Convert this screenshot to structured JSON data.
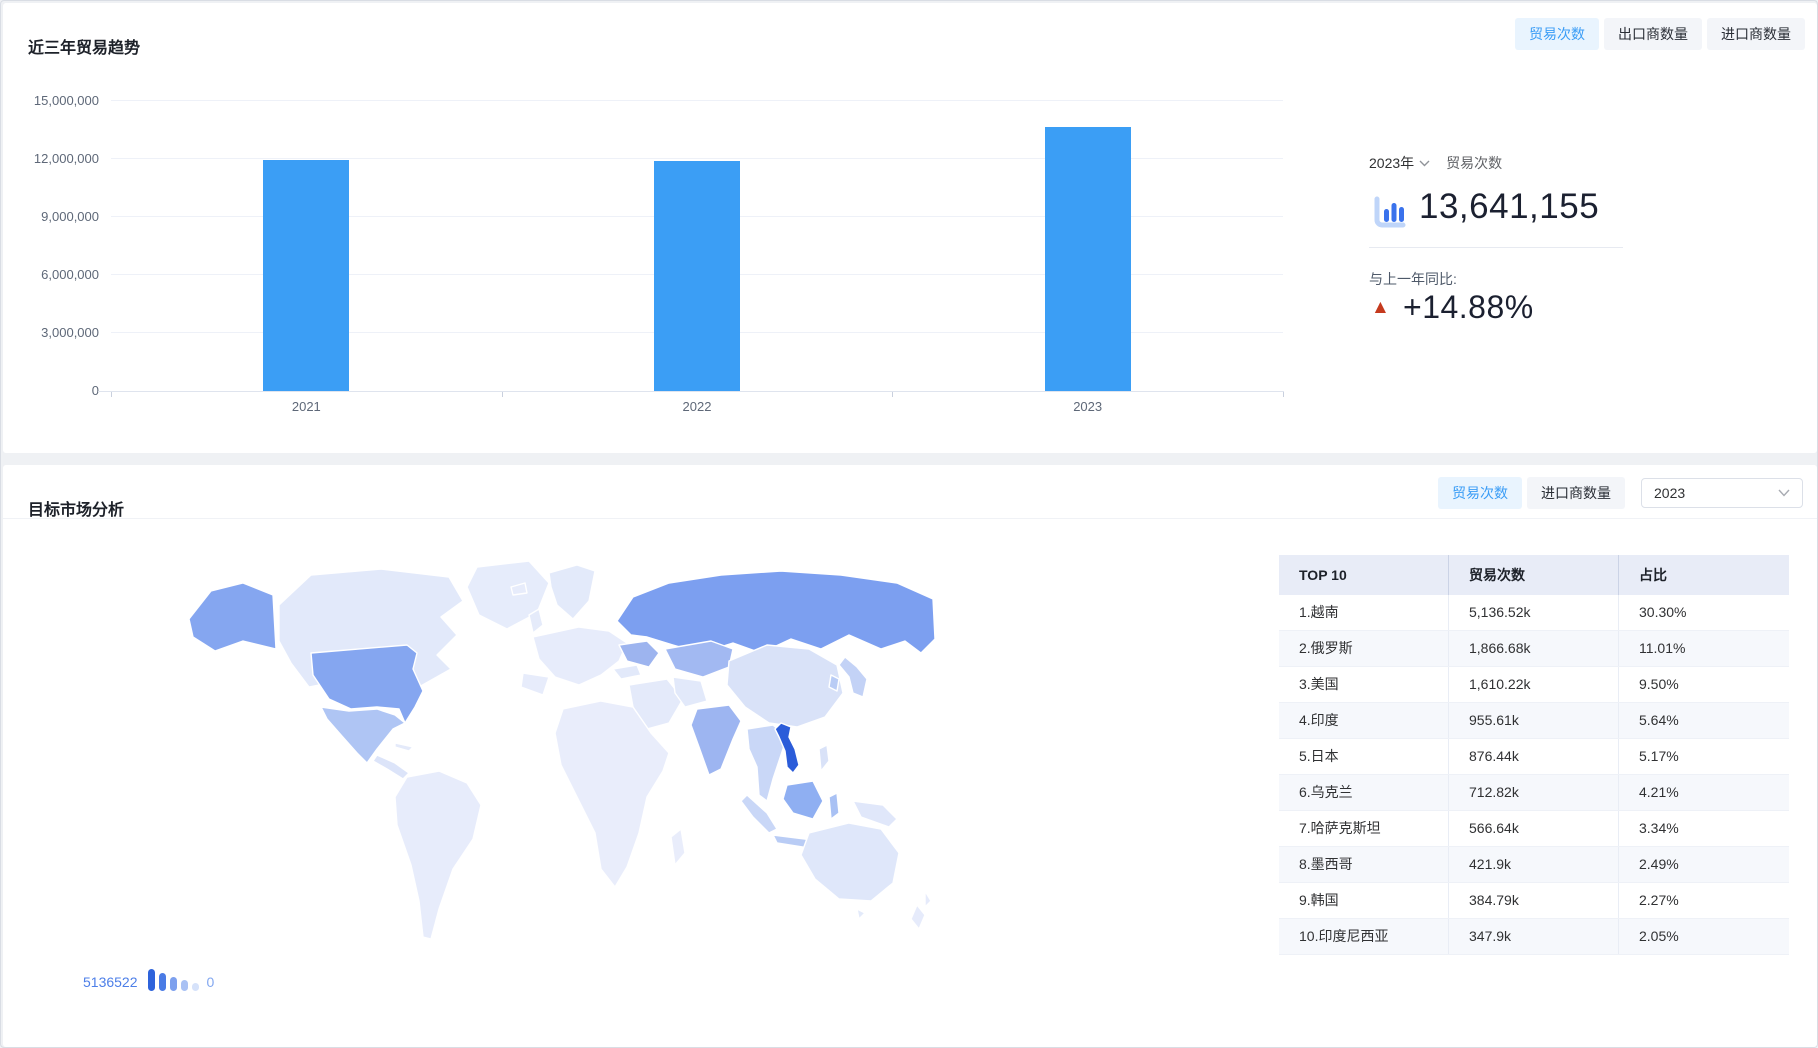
{
  "section1": {
    "title": "近三年贸易趋势",
    "tabs": [
      {
        "name": "tab-trade-count",
        "label": "贸易次数",
        "active": true
      },
      {
        "name": "tab-exporter-count",
        "label": "出口商数量",
        "active": false
      },
      {
        "name": "tab-importer-count",
        "label": "进口商数量",
        "active": false
      }
    ],
    "stat": {
      "year_select": "2023年",
      "metric_label": "贸易次数",
      "value": "13,641,155",
      "yoy_label": "与上一年同比:",
      "yoy_value": "+14.88%",
      "yoy_direction": "up"
    }
  },
  "section2": {
    "title": "目标市场分析",
    "tabs": [
      {
        "name": "tab-trade-count-2",
        "label": "贸易次数",
        "active": true
      },
      {
        "name": "tab-importer-count-2",
        "label": "进口商数量",
        "active": false
      }
    ],
    "year_select": "2023",
    "map_legend": {
      "max": "5136522",
      "min": "0"
    },
    "table": {
      "headers": [
        "TOP 10",
        "贸易次数",
        "占比"
      ]
    }
  },
  "chart_data": [
    {
      "type": "bar",
      "title": "近三年贸易趋势",
      "metric": "贸易次数",
      "categories": [
        "2021",
        "2022",
        "2023"
      ],
      "values": [
        11970000,
        11874000,
        13641155
      ],
      "ylim": [
        0,
        15000000
      ],
      "ytick_labels": [
        "0",
        "3,000,000",
        "6,000,000",
        "9,000,000",
        "12,000,000",
        "15,000,000"
      ],
      "grid": true,
      "legend_position": "none",
      "bar_color": "#3B9EF5"
    },
    {
      "type": "heatmap",
      "subtype": "world_choropleth",
      "title": "目标市场分析",
      "metric": "贸易次数",
      "year": "2023",
      "value_range": [
        0,
        5136522
      ],
      "top10": [
        {
          "rank": 1,
          "name": "越南",
          "value": "5,136.52k",
          "share": "30.30%"
        },
        {
          "rank": 2,
          "name": "俄罗斯",
          "value": "1,866.68k",
          "share": "11.01%"
        },
        {
          "rank": 3,
          "name": "美国",
          "value": "1,610.22k",
          "share": "9.50%"
        },
        {
          "rank": 4,
          "name": "印度",
          "value": "955.61k",
          "share": "5.64%"
        },
        {
          "rank": 5,
          "name": "日本",
          "value": "876.44k",
          "share": "5.17%"
        },
        {
          "rank": 6,
          "name": "乌克兰",
          "value": "712.82k",
          "share": "4.21%"
        },
        {
          "rank": 7,
          "name": "哈萨克斯坦",
          "value": "566.64k",
          "share": "3.34%"
        },
        {
          "rank": 8,
          "name": "墨西哥",
          "value": "421.9k",
          "share": "2.49%"
        },
        {
          "rank": 9,
          "name": "韩国",
          "value": "384.79k",
          "share": "2.27%"
        },
        {
          "rank": 10,
          "name": "印度尼西亚",
          "value": "347.9k",
          "share": "2.05%"
        }
      ]
    }
  ],
  "colors": {
    "accent_blue": "#3B9EF5",
    "tab_active_bg": "#E9F4FE",
    "tab_active_text": "#3B9DF6",
    "bar": "#3B9EF5",
    "up_indicator": "#C53A1E",
    "table_header_bg": "#E8ECF7",
    "row_alt_bg": "#F6F8FC",
    "legend_text_max": "#4D7FE8",
    "legend_text_min": "#82A7F0",
    "legend_bars": [
      "#2E63DB",
      "#4A7BE5",
      "#7DA0EE",
      "#A9C1F4",
      "#D6E2FA"
    ]
  },
  "map": {
    "colors": {
      "default": "#E9EDFB",
      "canada": "#E2E9FA",
      "greenland": "#E6ECFB",
      "alaska": "#85A6F0",
      "usa": "#85A6F0",
      "mexico": "#AFC5F4",
      "central-america": "#DCE4F9",
      "caribbean": "#E4EAFA",
      "south-america": "#E7ECFB",
      "iceland": "#E7ECFB",
      "uk": "#E5EBFA",
      "scandinavia": "#E3EAFA",
      "europe": "#E7ECFB",
      "iberia": "#E7ECFB",
      "ukraine": "#9DB4EF",
      "russia": "#7C9FF0",
      "kazakhstan": "#A2B9F2",
      "turkey": "#E2E9FA",
      "middle-east": "#E4EAFA",
      "iran": "#E2E9FA",
      "africa": "#E9EDFB",
      "madagascar": "#E9EDFB",
      "india": "#9DB5F1",
      "china": "#D9E2F8",
      "se-asia": "#C9D7F7",
      "vietnam": "#2B5CD9",
      "philippines": "#D9E2F8",
      "sumatra": "#C9D7F7",
      "java": "#B9CCF5",
      "borneo-indonesia": "#8FAFF2",
      "sulawesi": "#A9C1F4",
      "new-guinea": "#E0E7FA",
      "japan": "#C3D2F6",
      "korea": "#B9CCF5",
      "australia": "#DFE7FA",
      "tasmania": "#E3EAFA",
      "new-zealand": "#E6EBFB"
    }
  }
}
